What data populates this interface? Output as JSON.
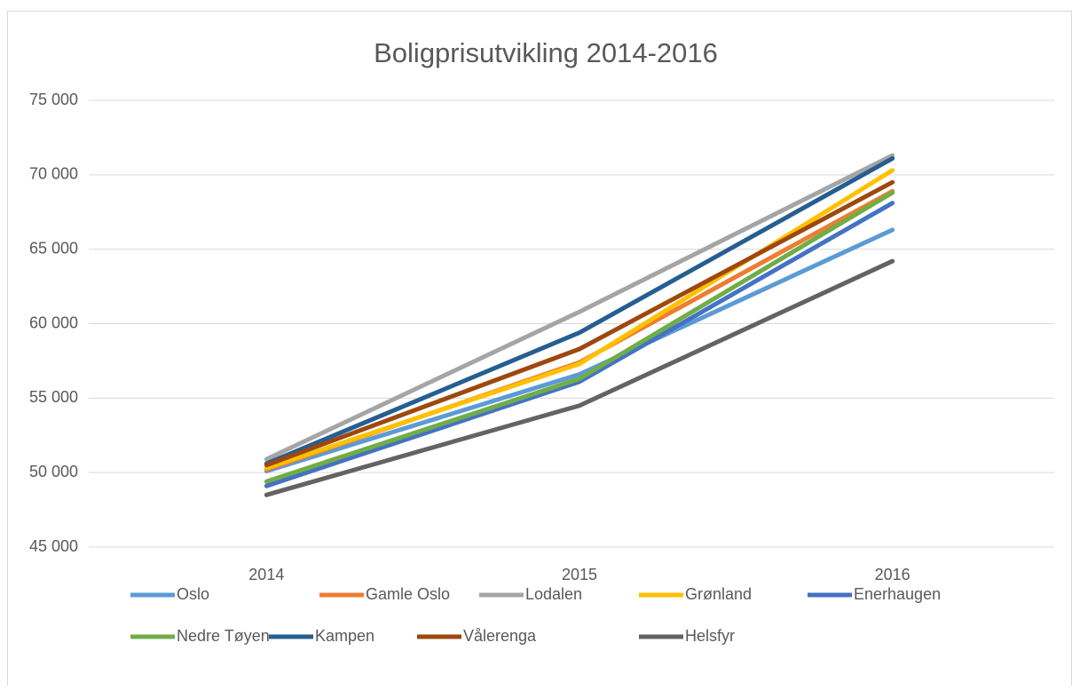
{
  "chart_data": {
    "type": "line",
    "title": "Boligprisutvikling 2014-2016",
    "categories": [
      "2014",
      "2015",
      "2016"
    ],
    "series": [
      {
        "name": "Oslo",
        "color": "#5b9bd5",
        "values": [
          50100,
          56600,
          66300
        ]
      },
      {
        "name": "Gamle Oslo",
        "color": "#ed7d31",
        "values": [
          50200,
          57400,
          68900
        ]
      },
      {
        "name": "Lodalen",
        "color": "#a5a5a5",
        "values": [
          50900,
          60800,
          71300
        ]
      },
      {
        "name": "Grønland",
        "color": "#ffc000",
        "values": [
          50300,
          57300,
          70300
        ]
      },
      {
        "name": "Enerhaugen",
        "color": "#4472c4",
        "values": [
          49100,
          56100,
          68100
        ]
      },
      {
        "name": "Nedre Tøyen",
        "color": "#70ad47",
        "values": [
          49400,
          56300,
          68800
        ]
      },
      {
        "name": "Kampen",
        "color": "#255e91",
        "values": [
          50600,
          59400,
          71100
        ]
      },
      {
        "name": "Vålerenga",
        "color": "#9e480e",
        "values": [
          50500,
          58300,
          69500
        ]
      },
      {
        "name": "Helsfyr",
        "color": "#636363",
        "values": [
          48500,
          54500,
          64200
        ]
      }
    ],
    "ylim": [
      45000,
      75000
    ],
    "yticks": [
      {
        "value": 45000,
        "label": "45 000"
      },
      {
        "value": 50000,
        "label": "50 000"
      },
      {
        "value": 55000,
        "label": "55 000"
      },
      {
        "value": 60000,
        "label": "60 000"
      },
      {
        "value": 65000,
        "label": "65 000"
      },
      {
        "value": 70000,
        "label": "70 000"
      },
      {
        "value": 75000,
        "label": "75 000"
      }
    ],
    "grid": true,
    "legend": "bottom"
  }
}
